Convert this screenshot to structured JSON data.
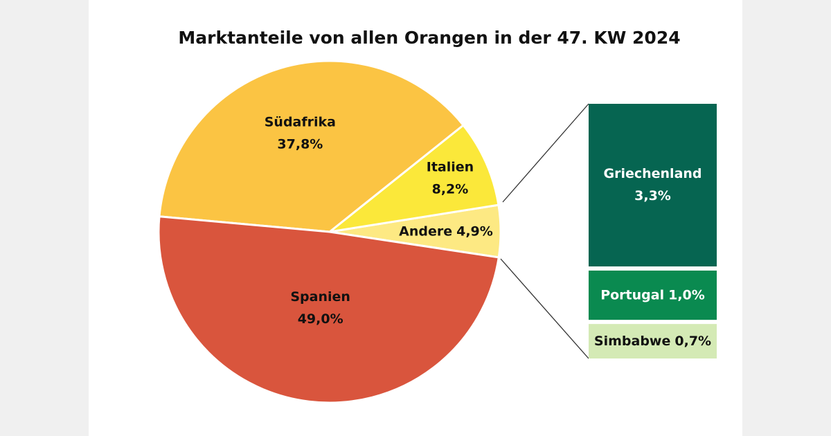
{
  "chart_data": {
    "type": "pie-of-bar",
    "title": "Marktanteile von allen Orangen in der 47. KW 2024",
    "categories": [
      "Andere",
      "Italien",
      "Südafrika",
      "Spanien"
    ],
    "values": [
      4.9,
      8.2,
      37.8,
      49.0
    ],
    "value_labels": [
      "4,9%",
      "8,2%",
      "37,8%",
      "49,0%"
    ],
    "colors": [
      "#fde983",
      "#fbe83a",
      "#fbc443",
      "#d9553d"
    ],
    "breakdown": {
      "categories": [
        "Griechenland",
        "Portugal",
        "Simbabwe"
      ],
      "values": [
        3.3,
        1.0,
        0.7
      ],
      "value_labels": [
        "3,3%",
        "1,0%",
        "0,7%"
      ],
      "colors": [
        "#066551",
        "#0a8a50",
        "#d4eab5"
      ]
    }
  }
}
